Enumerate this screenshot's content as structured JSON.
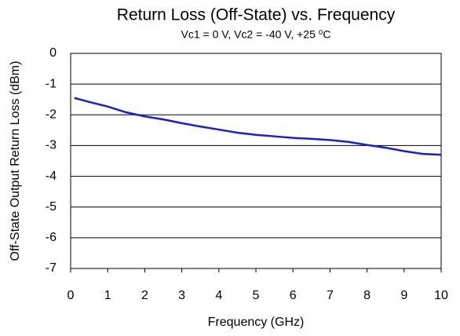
{
  "chart_data": {
    "type": "line",
    "title": "Return Loss (Off-State) vs. Frequency",
    "subtitle": "Vc1 = 0 V, Vc2 = -40 V, +25 ⁰C",
    "x_label": "Frequency (GHz)",
    "y_label": "Off-State Output Return Loss (dBm)",
    "xlim": [
      0,
      10
    ],
    "xticks": [
      0,
      1,
      2,
      3,
      4,
      5,
      6,
      7,
      8,
      9,
      10
    ],
    "ylim": [
      -7,
      0
    ],
    "yticks": [
      0,
      -1,
      -2,
      -3,
      -4,
      -5,
      -6,
      -7
    ],
    "grid": true,
    "series": [
      {
        "name": "Return Loss",
        "color": "#1c1cd0",
        "x": [
          0.1,
          0.5,
          1,
          1.5,
          2,
          2.5,
          3,
          3.5,
          4,
          4.5,
          5,
          5.5,
          6,
          6.5,
          7,
          7.5,
          8,
          8.5,
          9,
          9.5,
          10
        ],
        "values": [
          -1.45,
          -1.58,
          -1.73,
          -1.92,
          -2.05,
          -2.15,
          -2.27,
          -2.38,
          -2.48,
          -2.58,
          -2.65,
          -2.7,
          -2.75,
          -2.78,
          -2.82,
          -2.88,
          -2.98,
          -3.07,
          -3.18,
          -3.27,
          -3.3
        ]
      }
    ]
  }
}
